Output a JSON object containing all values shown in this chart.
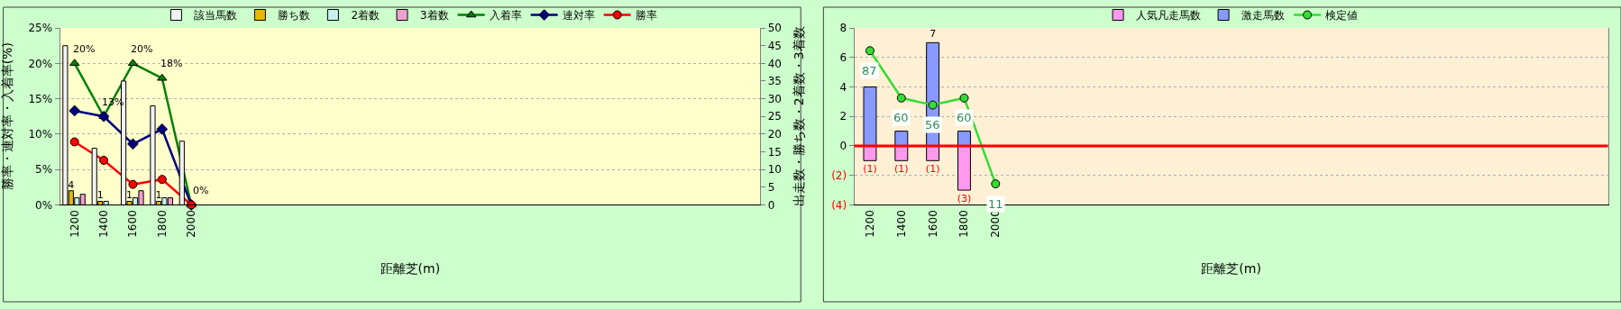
{
  "chart_data": [
    {
      "type": "bar",
      "xlabel": "距離芝(m)",
      "ylabel": "勝率・連対率・入着率(%)",
      "y2label": "出走数・勝ち数・2着数・3着数",
      "categories": [
        "1200",
        "1400",
        "1600",
        "1800",
        "2000",
        null,
        null,
        null,
        null,
        null,
        null,
        null,
        null,
        null,
        null,
        null,
        null,
        null,
        null,
        null,
        null,
        null,
        null,
        null
      ],
      "ylim": [
        0,
        25
      ],
      "yticks": [
        {
          "value": 0,
          "label": "0%"
        },
        {
          "value": 5,
          "label": "5%"
        },
        {
          "value": 10,
          "label": "10%"
        },
        {
          "value": 15,
          "label": "15%"
        },
        {
          "value": 20,
          "label": "20%"
        },
        {
          "value": 25,
          "label": "25%"
        }
      ],
      "y2lim": [
        0,
        50
      ],
      "y2ticks": [
        0,
        5,
        10,
        15,
        20,
        25,
        30,
        35,
        40,
        45,
        50
      ],
      "grid": true,
      "legend": "top",
      "series": [
        {
          "name": "該当馬数",
          "axis": "y2",
          "color": "#f2f2f2",
          "values": [
            45,
            16,
            35,
            28,
            18,
            null,
            null,
            null,
            null,
            null,
            null,
            null,
            null,
            null,
            null,
            null,
            null,
            null,
            null,
            null,
            null,
            null,
            null,
            null
          ]
        },
        {
          "name": "勝ち数",
          "axis": "y2",
          "color": "#e6b800",
          "values": [
            4,
            1,
            1,
            1,
            0,
            null,
            null,
            null,
            null,
            null,
            null,
            null,
            null,
            null,
            null,
            null,
            null,
            null,
            null,
            null,
            null,
            null,
            null,
            null
          ],
          "value_labels": [
            "4",
            "1",
            "1",
            "1",
            null,
            null,
            null,
            null,
            null,
            null,
            null,
            null,
            null,
            null,
            null,
            null,
            null,
            null,
            null,
            null,
            null,
            null,
            null,
            null
          ]
        },
        {
          "name": "2着数",
          "axis": "y2",
          "color": "#c8f0f0",
          "values": [
            2,
            1,
            2,
            2,
            0,
            null,
            null,
            null,
            null,
            null,
            null,
            null,
            null,
            null,
            null,
            null,
            null,
            null,
            null,
            null,
            null,
            null,
            null,
            null
          ]
        },
        {
          "name": "3着数",
          "axis": "y2",
          "color": "#f0a0d0",
          "values": [
            3,
            0,
            4,
            2,
            0,
            null,
            null,
            null,
            null,
            null,
            null,
            null,
            null,
            null,
            null,
            null,
            null,
            null,
            null,
            null,
            null,
            null,
            null,
            null
          ]
        },
        {
          "name": "入着率",
          "type": "line",
          "color": "#008000",
          "marker": "triangle",
          "values": [
            20,
            12.5,
            20,
            17.9,
            0,
            null,
            null,
            null,
            null,
            null,
            null,
            null,
            null,
            null,
            null,
            null,
            null,
            null,
            null,
            null,
            null,
            null,
            null,
            null
          ],
          "value_labels": [
            "20%",
            "13%",
            "20%",
            "18%",
            "0%",
            null,
            null,
            null,
            null,
            null,
            null,
            null,
            null,
            null,
            null,
            null,
            null,
            null,
            null,
            null,
            null,
            null,
            null,
            null
          ]
        },
        {
          "name": "連対率",
          "type": "line",
          "color": "#000080",
          "marker": "diamond",
          "values": [
            13.3,
            12.5,
            8.6,
            10.7,
            0,
            null,
            null,
            null,
            null,
            null,
            null,
            null,
            null,
            null,
            null,
            null,
            null,
            null,
            null,
            null,
            null,
            null,
            null,
            null
          ]
        },
        {
          "name": "勝率",
          "type": "line",
          "color": "#ff0000",
          "marker": "circle",
          "values": [
            8.9,
            6.3,
            2.9,
            3.6,
            0,
            null,
            null,
            null,
            null,
            null,
            null,
            null,
            null,
            null,
            null,
            null,
            null,
            null,
            null,
            null,
            null,
            null,
            null,
            null
          ]
        }
      ]
    },
    {
      "type": "bar",
      "xlabel": "距離芝(m)",
      "stacked": true,
      "tick_labels": "xy",
      "categories": [
        "1200",
        "1400",
        "1600",
        "1800",
        "2000",
        null,
        null,
        null,
        null,
        null,
        null,
        null,
        null,
        null,
        null,
        null,
        null,
        null,
        null,
        null,
        null,
        null,
        null,
        null
      ],
      "ylim": [
        -4,
        8
      ],
      "yticks": [
        {
          "value": -4,
          "label": "(4)"
        },
        {
          "value": -2,
          "label": "(2)"
        },
        0,
        2,
        4,
        6,
        8
      ],
      "y2lim": [
        -1,
        100
      ],
      "grid": true,
      "legend": "top",
      "ref_lines": [
        {
          "axis": "y",
          "value": 0,
          "color": "#ff0000"
        }
      ],
      "series": [
        {
          "name": "人気凡走馬数",
          "color": "#ff99ee",
          "values": [
            -1,
            -1,
            -1,
            -3,
            0,
            null,
            null,
            null,
            null,
            null,
            null,
            null,
            null,
            null,
            null,
            null,
            null,
            null,
            null,
            null,
            null,
            null,
            null,
            null
          ],
          "value_labels": [
            "(1)",
            "(1)",
            "(1)",
            "(3)",
            null,
            null,
            null,
            null,
            null,
            null,
            null,
            null,
            null,
            null,
            null,
            null,
            null,
            null,
            null,
            null,
            null,
            null,
            null,
            null
          ]
        },
        {
          "name": "激走馬数",
          "color": "#8899ff",
          "values": [
            4,
            1,
            7,
            1,
            0,
            null,
            null,
            null,
            null,
            null,
            null,
            null,
            null,
            null,
            null,
            null,
            null,
            null,
            null,
            null,
            null,
            null,
            null,
            null
          ],
          "value_labels": [
            null,
            null,
            "7",
            null,
            null,
            null,
            null,
            null,
            null,
            null,
            null,
            null,
            null,
            null,
            null,
            null,
            null,
            null,
            null,
            null,
            null,
            null,
            null,
            null
          ]
        },
        {
          "name": "検定値",
          "type": "line",
          "axis": "y2",
          "color": "#33dd33",
          "marker": "circle",
          "values": [
            87,
            60,
            56,
            60,
            11,
            null,
            null,
            null,
            null,
            null,
            null,
            null,
            null,
            null,
            null,
            null,
            null,
            null,
            null,
            null,
            null,
            null,
            null,
            null
          ],
          "value_labels": [
            "87",
            "60",
            "56",
            "60",
            "11",
            null,
            null,
            null,
            null,
            null,
            null,
            null,
            null,
            null,
            null,
            null,
            null,
            null,
            null,
            null,
            null,
            null,
            null,
            null
          ]
        }
      ]
    }
  ]
}
